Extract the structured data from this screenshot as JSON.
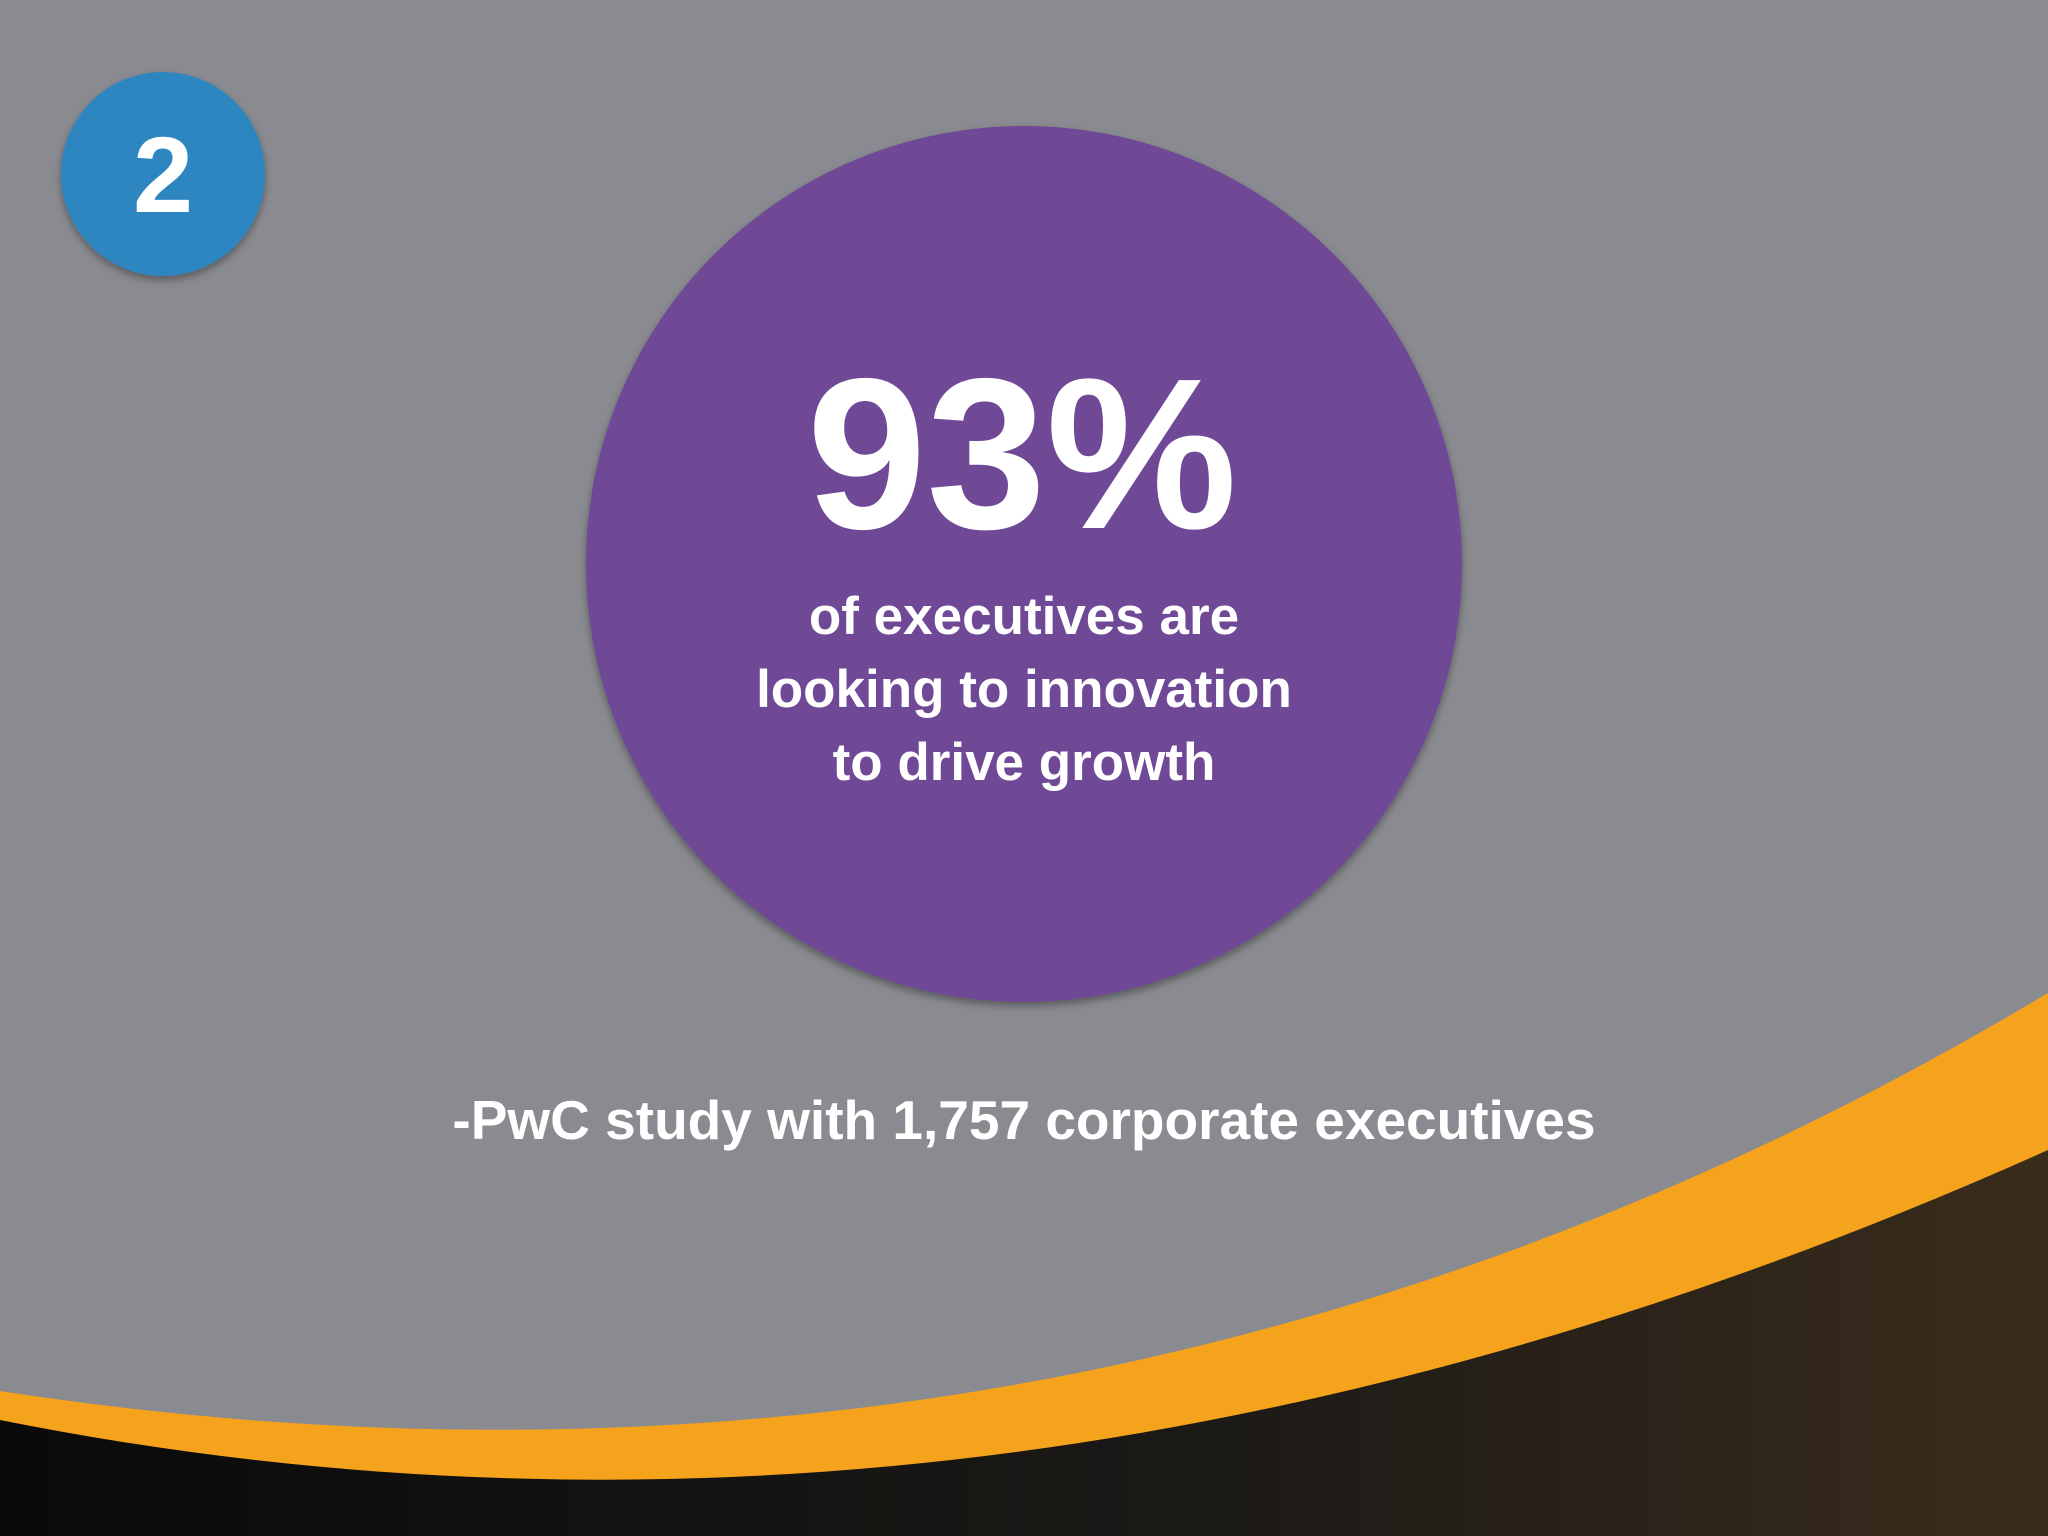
{
  "badge": "2",
  "headline": "93%",
  "body": [
    "of executives are",
    "looking to innovation",
    "to drive growth"
  ],
  "citation": "-PwC study with 1,757 corporate executives"
}
